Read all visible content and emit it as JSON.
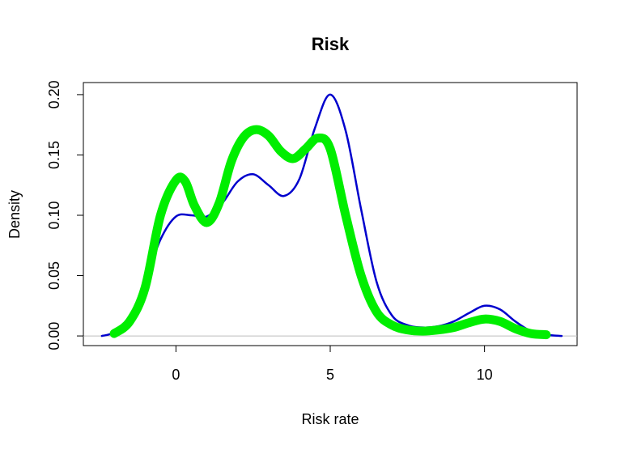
{
  "chart_data": {
    "type": "line",
    "title": "Risk",
    "xlabel": "Risk rate",
    "ylabel": "Density",
    "xlim": [
      -3,
      13
    ],
    "ylim": [
      -0.008,
      0.21
    ],
    "x_ticks": [
      0,
      5,
      10
    ],
    "x_tick_labels": [
      "0",
      "5",
      "10"
    ],
    "y_ticks": [
      0.0,
      0.05,
      0.1,
      0.15,
      0.2
    ],
    "y_tick_labels": [
      "0.00",
      "0.05",
      "0.10",
      "0.15",
      "0.20"
    ],
    "baseline": 0,
    "baseline_color": "#bebebe",
    "grid": false,
    "legend": "none",
    "series": [
      {
        "color": "#0000cd",
        "line_width": "thin",
        "x": [
          -2.4,
          -2.0,
          -1.5,
          -1.0,
          -0.5,
          0.0,
          0.5,
          1.0,
          1.5,
          2.0,
          2.5,
          3.0,
          3.5,
          4.0,
          4.5,
          5.0,
          5.5,
          6.0,
          6.5,
          7.0,
          7.5,
          8.0,
          8.5,
          9.0,
          9.5,
          10.0,
          10.5,
          11.0,
          11.5,
          12.0,
          12.5
        ],
        "values": [
          0.0,
          0.003,
          0.015,
          0.045,
          0.08,
          0.099,
          0.1,
          0.099,
          0.11,
          0.128,
          0.134,
          0.125,
          0.116,
          0.13,
          0.172,
          0.2,
          0.17,
          0.105,
          0.045,
          0.017,
          0.009,
          0.007,
          0.008,
          0.012,
          0.019,
          0.025,
          0.022,
          0.012,
          0.004,
          0.001,
          0.0
        ]
      },
      {
        "color": "#00ee00",
        "line_width": "thick",
        "x": [
          -2.0,
          -1.5,
          -1.0,
          -0.5,
          0.0,
          0.3,
          0.6,
          1.0,
          1.4,
          1.8,
          2.2,
          2.6,
          3.0,
          3.4,
          3.8,
          4.2,
          4.6,
          5.0,
          5.5,
          6.0,
          6.5,
          7.0,
          7.5,
          8.0,
          8.5,
          9.0,
          9.5,
          10.0,
          10.5,
          11.0,
          11.5,
          12.0
        ],
        "values": [
          0.002,
          0.012,
          0.04,
          0.1,
          0.129,
          0.128,
          0.108,
          0.094,
          0.11,
          0.145,
          0.165,
          0.171,
          0.166,
          0.153,
          0.147,
          0.155,
          0.164,
          0.155,
          0.1,
          0.05,
          0.02,
          0.009,
          0.005,
          0.004,
          0.005,
          0.007,
          0.011,
          0.014,
          0.012,
          0.006,
          0.002,
          0.001
        ]
      }
    ]
  }
}
